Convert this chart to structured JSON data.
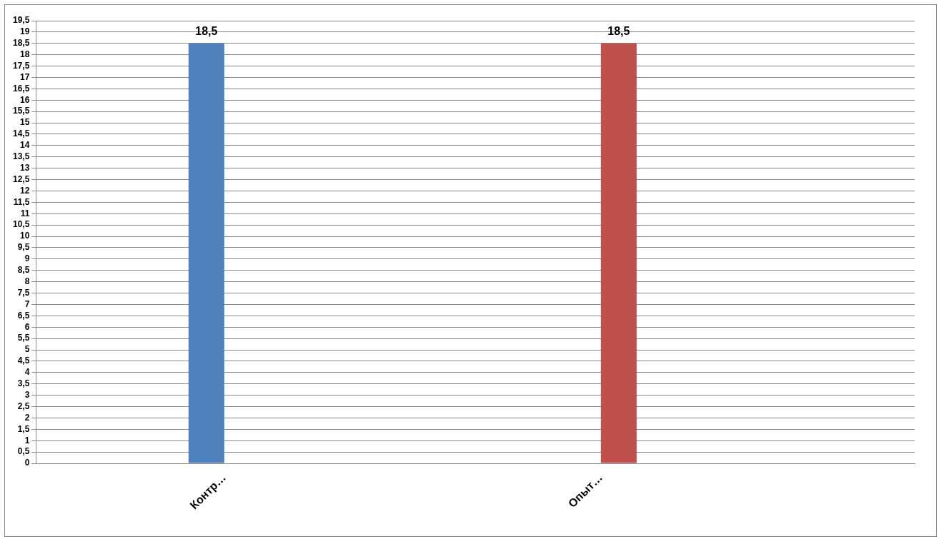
{
  "chart_data": {
    "type": "bar",
    "categories": [
      null,
      "Контр…",
      null,
      null,
      "Опыт…",
      null,
      null
    ],
    "series": [
      {
        "color": "#4f81bd",
        "values": [
          null,
          18.5,
          null,
          null,
          null,
          null,
          null
        ],
        "value_labels": [
          null,
          "18,5",
          null,
          null,
          null,
          null,
          null
        ]
      },
      {
        "color": "#c0504d",
        "values": [
          null,
          null,
          null,
          null,
          18.5,
          null,
          null
        ],
        "value_labels": [
          null,
          null,
          null,
          null,
          "18,5",
          null,
          null
        ]
      }
    ],
    "ylim": [
      0,
      19.5
    ],
    "yticks": [
      0,
      {
        "value": 0.5,
        "label": "0,5"
      },
      1,
      {
        "value": 1.5,
        "label": "1,5"
      },
      2,
      {
        "value": 2.5,
        "label": "2,5"
      },
      3,
      {
        "value": 3.5,
        "label": "3,5"
      },
      4,
      {
        "value": 4.5,
        "label": "4,5"
      },
      5,
      {
        "value": 5.5,
        "label": "5,5"
      },
      6,
      {
        "value": 6.5,
        "label": "6,5"
      },
      7,
      {
        "value": 7.5,
        "label": "7,5"
      },
      8,
      {
        "value": 8.5,
        "label": "8,5"
      },
      9,
      {
        "value": 9.5,
        "label": "9,5"
      },
      10,
      {
        "value": 10.5,
        "label": "10,5"
      },
      11,
      {
        "value": 11.5,
        "label": "11,5"
      },
      12,
      {
        "value": 12.5,
        "label": "12,5"
      },
      13,
      {
        "value": 13.5,
        "label": "13,5"
      },
      14,
      {
        "value": 14.5,
        "label": "14,5"
      },
      15,
      {
        "value": 15.5,
        "label": "15,5"
      },
      16,
      {
        "value": 16.5,
        "label": "16,5"
      },
      17,
      {
        "value": 17.5,
        "label": "17,5"
      },
      18,
      {
        "value": 18.5,
        "label": "18,5"
      },
      19,
      {
        "value": 19.5,
        "label": "19,5"
      }
    ],
    "grid": "y",
    "legend": false
  }
}
